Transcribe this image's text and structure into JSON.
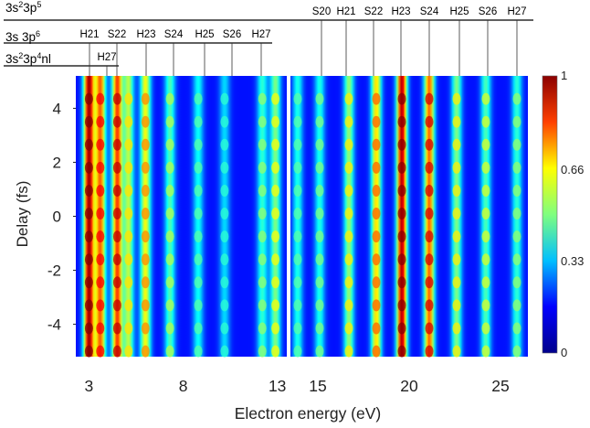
{
  "chart_data": {
    "type": "heatmap",
    "xlabel": "Electron energy (eV)",
    "ylabel": "Delay (fs)",
    "x_ticks": [
      {
        "value": "3",
        "panel": "left"
      },
      {
        "value": "8",
        "panel": "left"
      },
      {
        "value": "13",
        "panel": "left"
      },
      {
        "value": "15",
        "panel": "right"
      },
      {
        "value": "20",
        "panel": "right"
      },
      {
        "value": "25",
        "panel": "right"
      }
    ],
    "y_ticks": [
      "4",
      "2",
      "0",
      "-2",
      "-4"
    ],
    "ylim": [
      -5.2,
      5.2
    ],
    "panels": [
      {
        "name": "left",
        "xlim": [
          2.3,
          13.5
        ]
      },
      {
        "name": "right",
        "xlim": [
          13.5,
          26.5
        ]
      }
    ],
    "colorbar": {
      "min": 0,
      "max": 1,
      "ticks": [
        "1",
        "0.66",
        "0.33",
        "0"
      ],
      "colormap": "jet",
      "colors": [
        "#00008b",
        "#0000ff",
        "#00bfff",
        "#7fff7f",
        "#ffff00",
        "#ff4000",
        "#8b0000"
      ]
    },
    "series": [
      {
        "name": "3s²3p⁵",
        "labels": [
          "S20",
          "H21",
          "S22",
          "H23",
          "S24",
          "H25",
          "S26",
          "H27"
        ]
      },
      {
        "name": "3s 3p⁶",
        "labels": [
          "H21",
          "S22",
          "H23",
          "S24",
          "H25",
          "S26",
          "H27"
        ]
      },
      {
        "name": "3s²3p⁴nl",
        "labels": [
          "H27"
        ]
      }
    ],
    "bands": [
      {
        "panel": "left",
        "energy": 3.0,
        "intensity": 0.97,
        "modulation": 0.03
      },
      {
        "panel": "left",
        "energy": 3.6,
        "intensity": 0.78,
        "modulation": 0.1
      },
      {
        "panel": "left",
        "energy": 4.5,
        "intensity": 0.82,
        "modulation": 0.12
      },
      {
        "panel": "left",
        "energy": 5.1,
        "intensity": 0.55,
        "modulation": 0.1
      },
      {
        "panel": "left",
        "energy": 6.0,
        "intensity": 0.62,
        "modulation": 0.12
      },
      {
        "panel": "left",
        "energy": 7.3,
        "intensity": 0.45,
        "modulation": 0.1
      },
      {
        "panel": "left",
        "energy": 8.8,
        "intensity": 0.38,
        "modulation": 0.08
      },
      {
        "panel": "left",
        "energy": 10.2,
        "intensity": 0.34,
        "modulation": 0.08
      },
      {
        "panel": "left",
        "energy": 12.2,
        "intensity": 0.42,
        "modulation": 0.1
      },
      {
        "panel": "left",
        "energy": 12.9,
        "intensity": 0.5,
        "modulation": 0.12
      },
      {
        "panel": "right",
        "energy": 13.9,
        "intensity": 0.4,
        "modulation": 0.06
      },
      {
        "panel": "right",
        "energy": 15.1,
        "intensity": 0.4,
        "modulation": 0.1
      },
      {
        "panel": "right",
        "energy": 16.7,
        "intensity": 0.52,
        "modulation": 0.12
      },
      {
        "panel": "right",
        "energy": 18.2,
        "intensity": 0.66,
        "modulation": 0.12
      },
      {
        "panel": "right",
        "energy": 19.6,
        "intensity": 0.95,
        "modulation": 0.04
      },
      {
        "panel": "right",
        "energy": 21.1,
        "intensity": 0.78,
        "modulation": 0.14
      },
      {
        "panel": "right",
        "energy": 22.6,
        "intensity": 0.5,
        "modulation": 0.14
      },
      {
        "panel": "right",
        "energy": 24.2,
        "intensity": 0.45,
        "modulation": 0.14
      },
      {
        "panel": "right",
        "energy": 25.9,
        "intensity": 0.42,
        "modulation": 0.1
      }
    ]
  }
}
